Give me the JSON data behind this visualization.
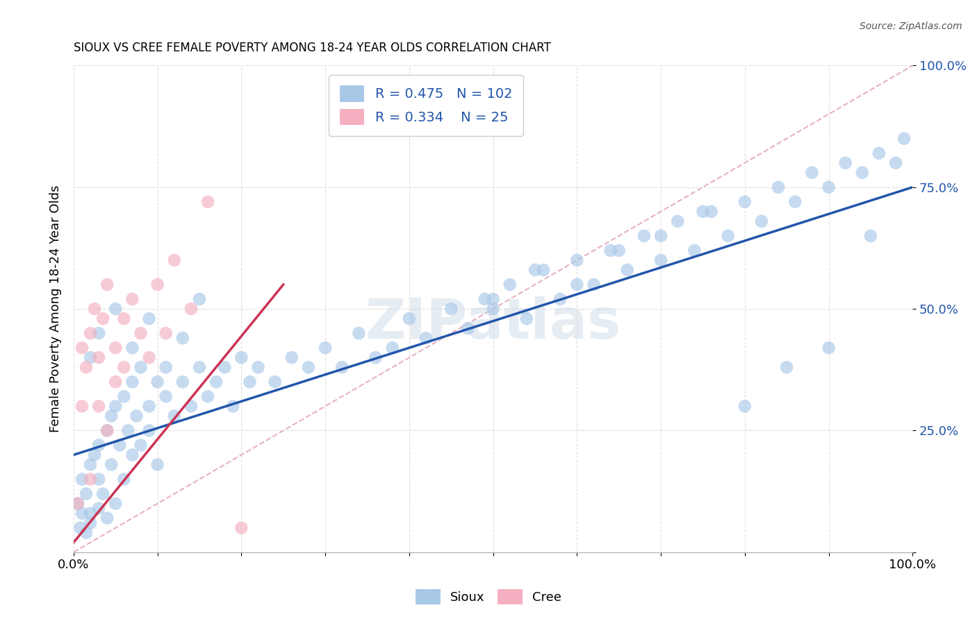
{
  "title": "SIOUX VS CREE FEMALE POVERTY AMONG 18-24 YEAR OLDS CORRELATION CHART",
  "source": "Source: ZipAtlas.com",
  "ylabel": "Female Poverty Among 18-24 Year Olds",
  "watermark": "ZIPatlas",
  "legend_sioux": "Sioux",
  "legend_cree": "Cree",
  "sioux_R": 0.475,
  "sioux_N": 102,
  "cree_R": 0.334,
  "cree_N": 25,
  "sioux_color": "#a8c8e8",
  "cree_color": "#f4b0c0",
  "sioux_line_color": "#2255aa",
  "cree_line_color": "#cc3355",
  "ref_line_color": "#e8b0c0",
  "ref_line_style": "--",
  "background_color": "#ffffff",
  "xlim": [
    0,
    1
  ],
  "ylim": [
    0,
    1
  ],
  "xticks": [
    0.0,
    0.1,
    0.2,
    0.3,
    0.4,
    0.5,
    0.6,
    0.7,
    0.8,
    0.9,
    1.0
  ],
  "yticks": [
    0.0,
    0.25,
    0.5,
    0.75,
    1.0
  ],
  "sioux_x": [
    0.005,
    0.008,
    0.01,
    0.01,
    0.015,
    0.015,
    0.02,
    0.02,
    0.02,
    0.025,
    0.03,
    0.03,
    0.03,
    0.035,
    0.04,
    0.04,
    0.045,
    0.045,
    0.05,
    0.05,
    0.055,
    0.06,
    0.06,
    0.065,
    0.07,
    0.07,
    0.075,
    0.08,
    0.08,
    0.09,
    0.09,
    0.1,
    0.1,
    0.11,
    0.12,
    0.13,
    0.14,
    0.15,
    0.16,
    0.17,
    0.18,
    0.19,
    0.2,
    0.21,
    0.22,
    0.24,
    0.26,
    0.28,
    0.3,
    0.32,
    0.34,
    0.36,
    0.38,
    0.4,
    0.42,
    0.45,
    0.47,
    0.49,
    0.5,
    0.52,
    0.54,
    0.56,
    0.58,
    0.6,
    0.62,
    0.64,
    0.66,
    0.68,
    0.7,
    0.72,
    0.74,
    0.76,
    0.78,
    0.8,
    0.82,
    0.84,
    0.86,
    0.88,
    0.9,
    0.92,
    0.94,
    0.96,
    0.98,
    0.99,
    0.02,
    0.03,
    0.05,
    0.07,
    0.09,
    0.11,
    0.13,
    0.15,
    0.5,
    0.55,
    0.6,
    0.65,
    0.7,
    0.75,
    0.8,
    0.85,
    0.9,
    0.95
  ],
  "sioux_y": [
    0.1,
    0.05,
    0.08,
    0.15,
    0.12,
    0.04,
    0.18,
    0.08,
    0.06,
    0.2,
    0.15,
    0.09,
    0.22,
    0.12,
    0.25,
    0.07,
    0.28,
    0.18,
    0.3,
    0.1,
    0.22,
    0.32,
    0.15,
    0.25,
    0.35,
    0.2,
    0.28,
    0.38,
    0.22,
    0.3,
    0.25,
    0.35,
    0.18,
    0.32,
    0.28,
    0.35,
    0.3,
    0.38,
    0.32,
    0.35,
    0.38,
    0.3,
    0.4,
    0.35,
    0.38,
    0.35,
    0.4,
    0.38,
    0.42,
    0.38,
    0.45,
    0.4,
    0.42,
    0.48,
    0.44,
    0.5,
    0.46,
    0.52,
    0.5,
    0.55,
    0.48,
    0.58,
    0.52,
    0.6,
    0.55,
    0.62,
    0.58,
    0.65,
    0.6,
    0.68,
    0.62,
    0.7,
    0.65,
    0.72,
    0.68,
    0.75,
    0.72,
    0.78,
    0.75,
    0.8,
    0.78,
    0.82,
    0.8,
    0.85,
    0.4,
    0.45,
    0.5,
    0.42,
    0.48,
    0.38,
    0.44,
    0.52,
    0.52,
    0.58,
    0.55,
    0.62,
    0.65,
    0.7,
    0.3,
    0.38,
    0.42,
    0.65
  ],
  "cree_x": [
    0.005,
    0.01,
    0.01,
    0.015,
    0.02,
    0.02,
    0.025,
    0.03,
    0.03,
    0.035,
    0.04,
    0.04,
    0.05,
    0.05,
    0.06,
    0.06,
    0.07,
    0.08,
    0.09,
    0.1,
    0.11,
    0.12,
    0.14,
    0.16,
    0.2
  ],
  "cree_y": [
    0.1,
    0.3,
    0.42,
    0.38,
    0.45,
    0.15,
    0.5,
    0.4,
    0.3,
    0.48,
    0.55,
    0.25,
    0.42,
    0.35,
    0.48,
    0.38,
    0.52,
    0.45,
    0.4,
    0.55,
    0.45,
    0.6,
    0.5,
    0.72,
    0.05
  ],
  "sioux_line_x0": 0.0,
  "sioux_line_y0": 0.2,
  "sioux_line_x1": 1.0,
  "sioux_line_y1": 0.75,
  "cree_line_x0": 0.0,
  "cree_line_y0": 0.02,
  "cree_line_x1": 0.25,
  "cree_line_y1": 0.55
}
